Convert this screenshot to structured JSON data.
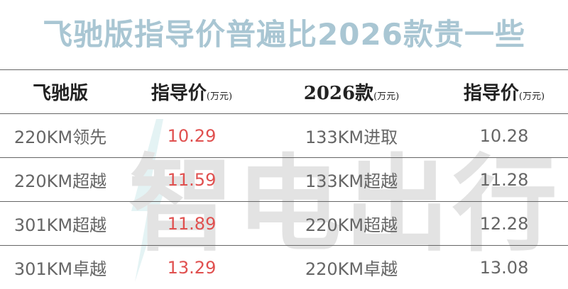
{
  "title": "飞驰版指导价普遍比2026款贵一些",
  "watermark": "智电出行",
  "table": {
    "header": [
      {
        "text": "飞驰版"
      },
      {
        "text": "指导价",
        "unit": "(万元)"
      },
      {
        "text": "2026款",
        "unit": "(万元)"
      },
      {
        "text": "指导价",
        "unit": "(万元)"
      }
    ],
    "rows": [
      [
        "220KM领先",
        "10.29",
        "133KM进取",
        "10.28"
      ],
      [
        "220KM超越",
        "11.59",
        "133KM超越",
        "11.28"
      ],
      [
        "301KM超越",
        "11.89",
        "220KM超越",
        "12.28"
      ],
      [
        "301KM卓越",
        "13.29",
        "220KM卓越",
        "13.08"
      ]
    ]
  }
}
